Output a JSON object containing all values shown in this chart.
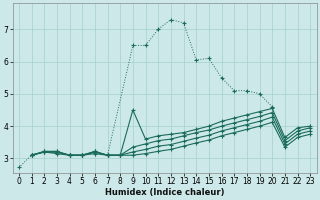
{
  "xlabel": "Humidex (Indice chaleur)",
  "background_color": "#cce8e8",
  "grid_color": "#aad4d4",
  "line_color": "#1a6b5a",
  "xlim": [
    -0.5,
    23.5
  ],
  "ylim": [
    2.55,
    7.8
  ],
  "yticks": [
    3,
    4,
    5,
    6,
    7
  ],
  "xticks": [
    0,
    1,
    2,
    3,
    4,
    5,
    6,
    7,
    8,
    9,
    10,
    11,
    12,
    13,
    14,
    15,
    16,
    17,
    18,
    19,
    20,
    21,
    22,
    23
  ],
  "lines": [
    {
      "x": [
        0,
        1,
        2,
        3,
        4,
        5,
        6,
        7,
        9,
        10,
        11,
        12,
        13,
        14,
        15,
        16,
        17,
        18,
        19,
        20
      ],
      "y": [
        2.72,
        3.1,
        3.22,
        3.22,
        3.1,
        3.1,
        3.22,
        3.1,
        6.5,
        6.5,
        7.0,
        7.3,
        7.2,
        6.05,
        6.1,
        5.5,
        5.1,
        5.1,
        5.0,
        4.6
      ],
      "style": "dotted"
    },
    {
      "x": [
        1,
        2,
        3,
        4,
        5,
        6,
        7,
        8,
        9,
        10,
        11,
        12,
        13,
        14,
        15,
        16,
        17,
        18,
        19,
        20,
        21,
        22,
        23
      ],
      "y": [
        3.1,
        3.22,
        3.22,
        3.1,
        3.1,
        3.22,
        3.1,
        3.1,
        4.5,
        3.6,
        3.7,
        3.75,
        3.8,
        3.9,
        4.0,
        4.15,
        4.25,
        4.35,
        4.45,
        4.55,
        3.65,
        3.95,
        4.0
      ],
      "style": "solid"
    },
    {
      "x": [
        1,
        2,
        3,
        4,
        5,
        6,
        7,
        8,
        9,
        10,
        11,
        12,
        13,
        14,
        15,
        16,
        17,
        18,
        19,
        20,
        21,
        22,
        23
      ],
      "y": [
        3.1,
        3.2,
        3.2,
        3.1,
        3.1,
        3.2,
        3.1,
        3.1,
        3.35,
        3.45,
        3.55,
        3.6,
        3.7,
        3.8,
        3.88,
        4.0,
        4.1,
        4.2,
        4.3,
        4.42,
        3.55,
        3.85,
        3.95
      ],
      "style": "solid"
    },
    {
      "x": [
        1,
        2,
        3,
        4,
        5,
        6,
        7,
        8,
        9,
        10,
        11,
        12,
        13,
        14,
        15,
        16,
        17,
        18,
        19,
        20,
        21,
        22,
        23
      ],
      "y": [
        3.1,
        3.2,
        3.2,
        3.1,
        3.1,
        3.2,
        3.1,
        3.1,
        3.2,
        3.28,
        3.38,
        3.43,
        3.53,
        3.63,
        3.72,
        3.85,
        3.95,
        4.05,
        4.15,
        4.28,
        3.45,
        3.75,
        3.85
      ],
      "style": "solid"
    },
    {
      "x": [
        1,
        2,
        3,
        4,
        5,
        6,
        7,
        8,
        9,
        10,
        11,
        12,
        13,
        14,
        15,
        16,
        17,
        18,
        19,
        20,
        21,
        22,
        23
      ],
      "y": [
        3.1,
        3.2,
        3.15,
        3.1,
        3.1,
        3.15,
        3.1,
        3.1,
        3.1,
        3.15,
        3.22,
        3.28,
        3.38,
        3.48,
        3.57,
        3.7,
        3.8,
        3.9,
        4.0,
        4.12,
        3.35,
        3.65,
        3.75
      ],
      "style": "solid"
    }
  ]
}
